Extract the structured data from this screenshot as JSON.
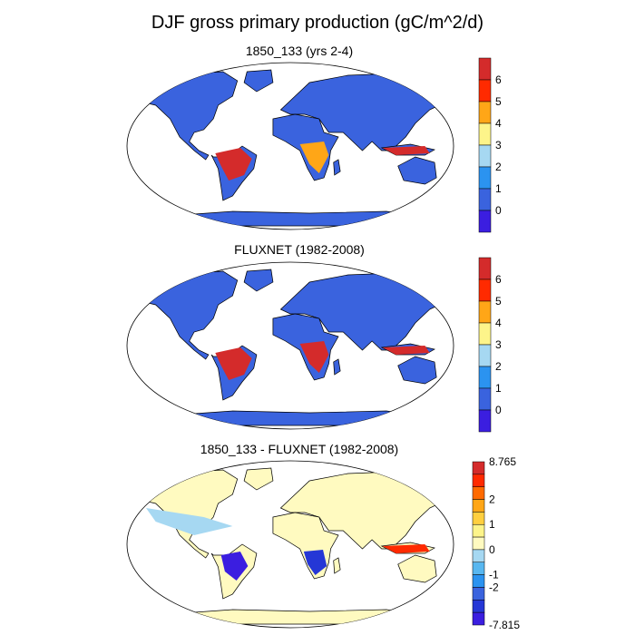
{
  "title": "DJF gross primary production (gC/m^2/d)",
  "panels": [
    {
      "title": "1850_133 (yrs 2-4)",
      "colorbar": {
        "colors": [
          "#3b1ee0",
          "#3a63de",
          "#2b93f0",
          "#a6d8f2",
          "#fdf48a",
          "#ffa617",
          "#ff2a00",
          "#d42b2b"
        ],
        "labels": [
          "0",
          "1",
          "2",
          "3",
          "4",
          "5",
          "6"
        ]
      }
    },
    {
      "title": "FLUXNET (1982-2008)",
      "colorbar": {
        "colors": [
          "#3b1ee0",
          "#3a63de",
          "#2b93f0",
          "#a6d8f2",
          "#fdf48a",
          "#ffa617",
          "#ff2a00",
          "#d42b2b"
        ],
        "labels": [
          "0",
          "1",
          "2",
          "3",
          "4",
          "5",
          "6"
        ]
      }
    },
    {
      "title": "1850_133 - FLUXNET (1982-2008)",
      "colorbar": {
        "colors": [
          "#3b1ee0",
          "#2537d6",
          "#3a63de",
          "#2b93f0",
          "#58b7f0",
          "#a6d8f2",
          "#fffac0",
          "#fdf48a",
          "#ffcf40",
          "#ffa617",
          "#ff6a00",
          "#ff2a00",
          "#d42b2b"
        ],
        "labels": [
          "-7.815",
          "-2",
          "-1",
          "0",
          "1",
          "2",
          "8.765"
        ]
      }
    }
  ],
  "colors": {
    "ocean": "#ffffff",
    "low": "#3a63de",
    "high": "#d42b2b",
    "diff_base": "#fffac0"
  }
}
